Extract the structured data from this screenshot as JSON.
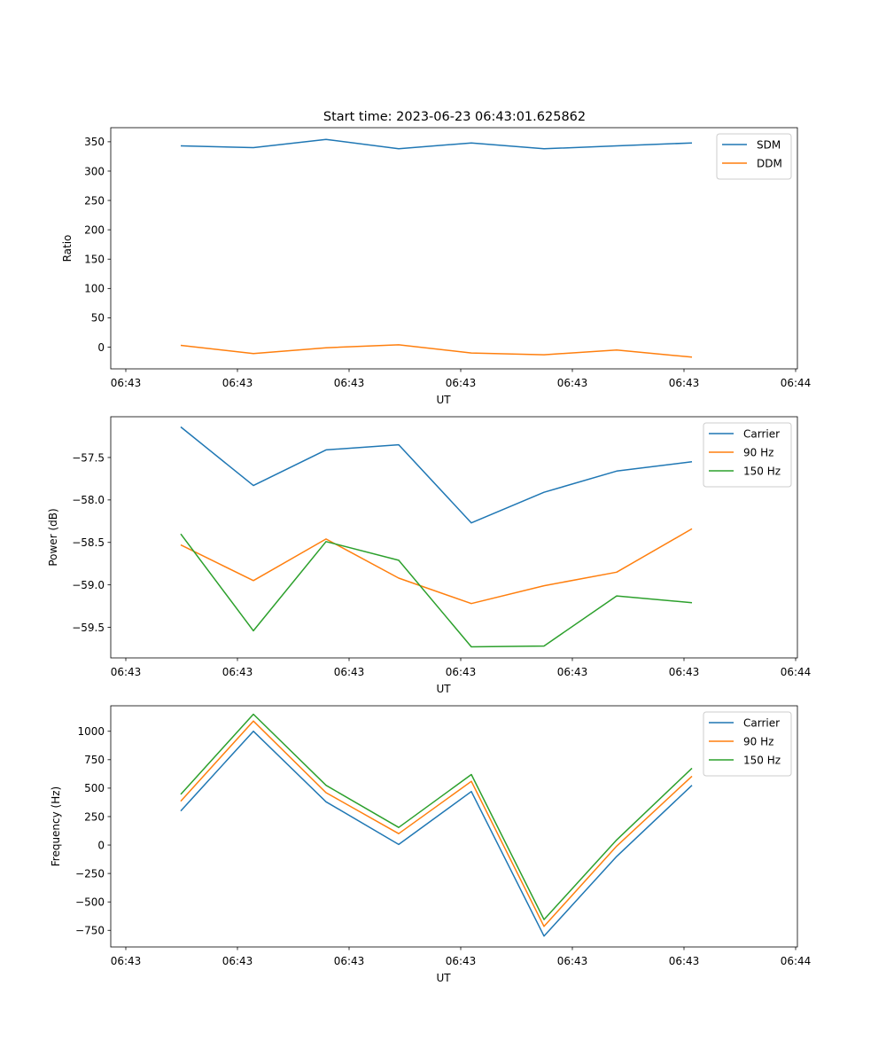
{
  "figure": {
    "title": "Start time: 2023-06-23 06:43:01.625862",
    "colors": {
      "blue": "#1f77b4",
      "orange": "#ff7f0e",
      "green": "#2ca02c",
      "axes": "#000000",
      "legend_border": "#cccccc"
    }
  },
  "chart_data": [
    {
      "type": "line",
      "title": "Start time: 2023-06-23 06:43:01.625862",
      "xlabel": "UT",
      "ylabel": "Ratio",
      "x_tick_labels": [
        "06:43",
        "06:43",
        "06:43",
        "06:43",
        "06:43",
        "06:43",
        "06:44"
      ],
      "y_ticks": [
        0,
        50,
        100,
        150,
        200,
        250,
        300,
        350
      ],
      "y_tick_labels": [
        "0",
        "50",
        "100",
        "150",
        "200",
        "250",
        "300",
        "350"
      ],
      "ylim": [
        -37,
        374
      ],
      "legend_position": "upper right",
      "series": [
        {
          "name": "SDM",
          "color": "#1f77b4",
          "values": [
            343,
            340,
            354,
            338,
            348,
            338,
            343,
            348
          ]
        },
        {
          "name": "DDM",
          "color": "#ff7f0e",
          "values": [
            3,
            -11,
            -1,
            4,
            -10,
            -13,
            -5,
            -17
          ]
        }
      ]
    },
    {
      "type": "line",
      "title": "",
      "xlabel": "UT",
      "ylabel": "Power (dB)",
      "x_tick_labels": [
        "06:43",
        "06:43",
        "06:43",
        "06:43",
        "06:43",
        "06:43",
        "06:44"
      ],
      "y_ticks": [
        -59.5,
        -59.0,
        -58.5,
        -58.0,
        -57.5
      ],
      "y_tick_labels": [
        "−59.5",
        "−59.0",
        "−58.5",
        "−58.0",
        "−57.5"
      ],
      "ylim": [
        -59.86,
        -57.02
      ],
      "legend_position": "upper right",
      "series": [
        {
          "name": "Carrier",
          "color": "#1f77b4",
          "values": [
            -57.14,
            -57.83,
            -57.41,
            -57.35,
            -58.27,
            -57.91,
            -57.66,
            -57.55
          ]
        },
        {
          "name": "90 Hz",
          "color": "#ff7f0e",
          "values": [
            -58.53,
            -58.95,
            -58.46,
            -58.92,
            -59.22,
            -59.01,
            -58.85,
            -58.34
          ]
        },
        {
          "name": "150 Hz",
          "color": "#2ca02c",
          "values": [
            -58.4,
            -59.54,
            -58.49,
            -58.71,
            -59.73,
            -59.72,
            -59.13,
            -59.21
          ]
        }
      ]
    },
    {
      "type": "line",
      "title": "",
      "xlabel": "UT",
      "ylabel": "Frequency (Hz)",
      "x_tick_labels": [
        "06:43",
        "06:43",
        "06:43",
        "06:43",
        "06:43",
        "06:43",
        "06:44"
      ],
      "y_ticks": [
        -750,
        -500,
        -250,
        0,
        250,
        500,
        750,
        1000
      ],
      "y_tick_labels": [
        "−750",
        "−500",
        "−250",
        "0",
        "250",
        "500",
        "750",
        "1000"
      ],
      "ylim": [
        -896,
        1224
      ],
      "legend_position": "upper right",
      "series": [
        {
          "name": "Carrier",
          "color": "#1f77b4",
          "values": [
            300,
            1000,
            380,
            5,
            470,
            -800,
            -100,
            525
          ]
        },
        {
          "name": "90 Hz",
          "color": "#ff7f0e",
          "values": [
            385,
            1090,
            460,
            100,
            560,
            -715,
            -10,
            605
          ]
        },
        {
          "name": "150 Hz",
          "color": "#2ca02c",
          "values": [
            445,
            1150,
            525,
            155,
            620,
            -655,
            45,
            675
          ]
        }
      ]
    }
  ]
}
